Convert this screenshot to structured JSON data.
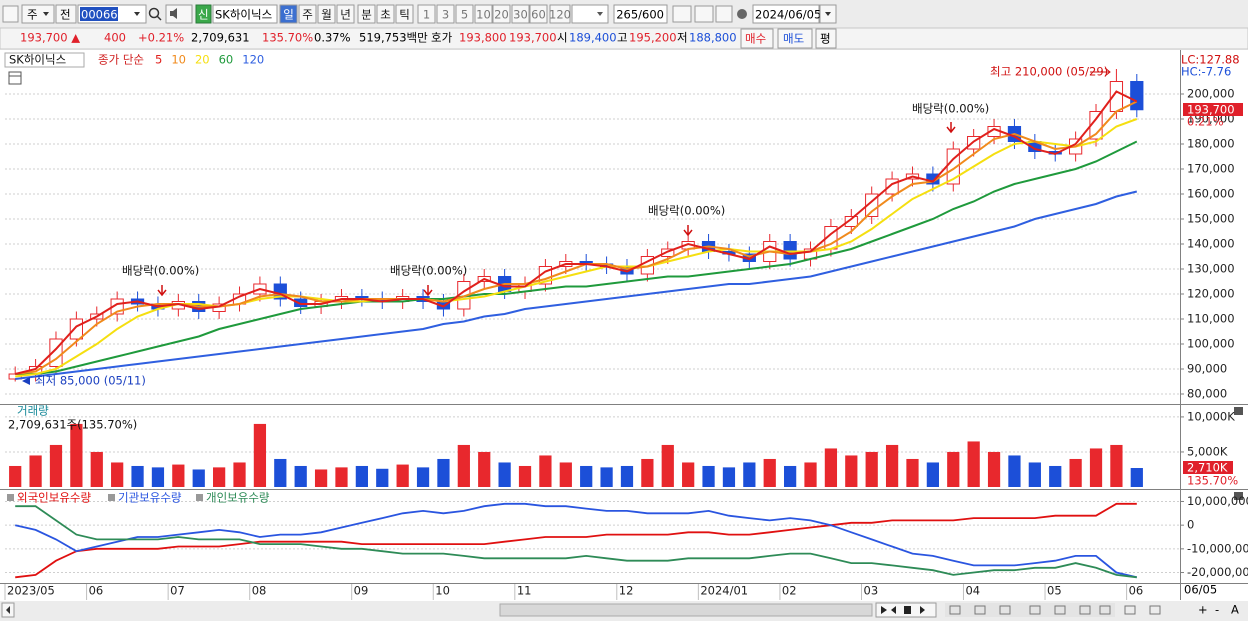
{
  "toolbar": {
    "period_select": "주",
    "prev_btn": "전",
    "code": "000660",
    "new_badge": "신",
    "name": "SK하이닉스",
    "periods": [
      "일",
      "주",
      "월",
      "년",
      "분",
      "초",
      "틱"
    ],
    "intervals": [
      "1",
      "3",
      "5",
      "10",
      "20",
      "30",
      "60",
      "120"
    ],
    "count": "265/600",
    "date": "2024/06/05"
  },
  "quote_bar": {
    "price": "193,700 ▲",
    "change": "400",
    "change_pct": "+0.21%",
    "volume": "2,709,631",
    "volume_ratio": "135.70%",
    "turnover": "0.37%",
    "amount": "519,753백만",
    "bid_ask_label": "호가",
    "ask": "193,800",
    "bid": "193,700",
    "open_label": "시",
    "open": "189,400",
    "high_label": "고",
    "high": "195,200",
    "low_label": "저",
    "low": "188,800",
    "buy": "매수",
    "sell": "매도",
    "balance": "평"
  },
  "chart_data": [
    {
      "type": "candlestick",
      "title": "SK하이닉스",
      "ma_label": "종가 단순",
      "up_color": "#e8282d",
      "down_color": "#1c4fd8",
      "open": [
        86000,
        88000,
        91000,
        102000,
        110000,
        112000,
        118000,
        116000,
        114000,
        117000,
        113000,
        116000,
        120000,
        124000,
        118000,
        115000,
        117000,
        119000,
        118000,
        117000,
        119000,
        117000,
        114000,
        125000,
        127000,
        121000,
        124000,
        131000,
        133000,
        132000,
        131000,
        128000,
        135000,
        138000,
        141000,
        137000,
        136000,
        133000,
        141000,
        134000,
        138000,
        147000,
        151000,
        160000,
        166000,
        168000,
        164000,
        178000,
        183000,
        187000,
        181000,
        177000,
        176000,
        182000,
        193000,
        205000
      ],
      "high": [
        91000,
        94000,
        105000,
        113000,
        115000,
        121000,
        121000,
        119000,
        120000,
        120000,
        119000,
        123000,
        127000,
        127000,
        121000,
        120000,
        122000,
        122000,
        121000,
        122000,
        122000,
        120000,
        128000,
        130000,
        130000,
        127000,
        134000,
        136000,
        136000,
        135000,
        134000,
        138000,
        141000,
        144000,
        144000,
        140000,
        139000,
        144000,
        144000,
        141000,
        150000,
        154000,
        163000,
        169000,
        171000,
        171000,
        181000,
        186000,
        190000,
        190000,
        184000,
        180000,
        185000,
        196000,
        210000,
        208000
      ],
      "low": [
        85000,
        85000,
        88000,
        99000,
        107000,
        109000,
        113000,
        111000,
        111000,
        110000,
        110000,
        113000,
        117000,
        115000,
        112000,
        112000,
        114000,
        115000,
        114000,
        114000,
        114000,
        111000,
        111000,
        122000,
        118000,
        118000,
        121000,
        128000,
        129000,
        128000,
        125000,
        125000,
        132000,
        135000,
        134000,
        133000,
        130000,
        130000,
        131000,
        131000,
        135000,
        144000,
        148000,
        157000,
        163000,
        161000,
        161000,
        175000,
        180000,
        178000,
        174000,
        173000,
        173000,
        179000,
        190000,
        190700
      ],
      "close": [
        88000,
        91000,
        102000,
        110000,
        112000,
        118000,
        116000,
        114000,
        117000,
        113000,
        116000,
        120000,
        124000,
        118000,
        115000,
        117000,
        119000,
        118000,
        117000,
        119000,
        117000,
        114000,
        125000,
        127000,
        121000,
        124000,
        131000,
        133000,
        132000,
        131000,
        128000,
        135000,
        138000,
        141000,
        137000,
        136000,
        133000,
        141000,
        134000,
        138000,
        147000,
        151000,
        160000,
        166000,
        168000,
        164000,
        178000,
        183000,
        187000,
        181000,
        177000,
        176000,
        182000,
        193000,
        205000,
        193700
      ],
      "series": [
        {
          "name": "120",
          "color": "#2f5fe0",
          "values": [
            86000,
            87000,
            88000,
            89000,
            90000,
            91000,
            92000,
            93000,
            94000,
            95000,
            96000,
            97000,
            98000,
            99000,
            100000,
            101000,
            102000,
            103000,
            104000,
            105000,
            106000,
            108000,
            109000,
            111000,
            112000,
            114000,
            115000,
            116000,
            117000,
            118000,
            119000,
            120000,
            121000,
            122000,
            123000,
            124000,
            124000,
            125000,
            126000,
            127000,
            129000,
            131000,
            133000,
            135000,
            137000,
            139000,
            141000,
            143000,
            145000,
            147000,
            150000,
            152000,
            154000,
            156000,
            159000,
            161000
          ]
        },
        {
          "name": "60",
          "color": "#1f9a3c",
          "values": [
            88000,
            88000,
            89000,
            91000,
            93000,
            95000,
            97000,
            99000,
            101000,
            103000,
            106000,
            108000,
            110000,
            112000,
            114000,
            115000,
            116000,
            117000,
            117000,
            117000,
            118000,
            118000,
            119000,
            120000,
            120000,
            121000,
            122000,
            123000,
            123000,
            124000,
            125000,
            126000,
            127000,
            127000,
            128000,
            129000,
            130000,
            131000,
            132000,
            134000,
            136000,
            138000,
            141000,
            144000,
            147000,
            150000,
            154000,
            157000,
            161000,
            164000,
            166000,
            168000,
            170000,
            173000,
            177000,
            181000
          ]
        },
        {
          "name": "20",
          "color": "#f5df10",
          "values": [
            87000,
            88000,
            90000,
            95000,
            100000,
            106000,
            111000,
            114000,
            116000,
            116000,
            115000,
            116000,
            118000,
            119000,
            119000,
            118000,
            117000,
            117000,
            118000,
            118000,
            118000,
            117000,
            118000,
            119000,
            121000,
            123000,
            125000,
            127000,
            129000,
            131000,
            131000,
            131000,
            133000,
            135000,
            137000,
            138000,
            137000,
            137000,
            137000,
            137000,
            138000,
            141000,
            146000,
            152000,
            158000,
            162000,
            166000,
            171000,
            176000,
            180000,
            181000,
            180000,
            179000,
            181000,
            187000,
            190000
          ]
        },
        {
          "name": "10",
          "color": "#f08a1c",
          "values": [
            88000,
            89000,
            94000,
            101000,
            108000,
            113000,
            115000,
            116000,
            116000,
            115000,
            115000,
            116000,
            119000,
            120000,
            119000,
            117000,
            117000,
            118000,
            118000,
            118000,
            118000,
            117000,
            119000,
            122000,
            124000,
            124000,
            126000,
            129000,
            132000,
            132000,
            130000,
            131000,
            134000,
            138000,
            139000,
            138000,
            135000,
            137000,
            136000,
            137000,
            140000,
            145000,
            153000,
            159000,
            164000,
            165000,
            170000,
            176000,
            182000,
            184000,
            181000,
            178000,
            179000,
            184000,
            193000,
            197000
          ]
        },
        {
          "name": "5",
          "color": "#e0201c",
          "values": [
            88000,
            90000,
            98000,
            107000,
            111000,
            116000,
            117000,
            115000,
            116000,
            114000,
            115000,
            119000,
            122000,
            120000,
            116000,
            116000,
            118000,
            118000,
            117000,
            118000,
            118000,
            115000,
            121000,
            126000,
            123000,
            123000,
            129000,
            132000,
            132000,
            131000,
            129000,
            133000,
            137000,
            140000,
            138000,
            136000,
            134000,
            139000,
            136000,
            137000,
            144000,
            150000,
            157000,
            164000,
            167000,
            165000,
            174000,
            181000,
            186000,
            183000,
            178000,
            176000,
            180000,
            190000,
            201000,
            197000
          ]
        }
      ],
      "legend_order": [
        4,
        3,
        2,
        1,
        0
      ],
      "ylim": [
        76000,
        216000
      ],
      "yticks": [
        {
          "value": 80000,
          "label": "80,000"
        },
        {
          "value": 90000,
          "label": "90,000"
        },
        {
          "value": 100000,
          "label": "100,000"
        },
        {
          "value": 110000,
          "label": "110,000"
        },
        {
          "value": 120000,
          "label": "120,000"
        },
        {
          "value": 130000,
          "label": "130,000"
        },
        {
          "value": 140000,
          "label": "140,000"
        },
        {
          "value": 150000,
          "label": "150,000"
        },
        {
          "value": 160000,
          "label": "160,000"
        },
        {
          "value": 170000,
          "label": "170,000"
        },
        {
          "value": 180000,
          "label": "180,000"
        },
        {
          "value": 190000,
          "label": "190,000"
        },
        {
          "value": 200000,
          "label": "200,000"
        }
      ],
      "grid": true,
      "annotations": [
        "최고 210,000 (05/29)",
        "최저 85,000 (05/11)",
        "배당락(0.00%)",
        "배당락(0.00%)",
        "배당락(0.00%)",
        "배당락(0.00%)"
      ],
      "scale_labels": [
        "LC:127.88",
        "HC:-7.76"
      ],
      "last_price_label": "193,700",
      "last_change_label": "0.21%"
    },
    {
      "type": "bar",
      "title": "거래량",
      "info": "2,709,631주(135.70%)",
      "values": [
        3000000,
        4500000,
        6000000,
        9000000,
        5000000,
        3500000,
        3000000,
        2800000,
        3200000,
        2500000,
        2800000,
        3500000,
        9000000,
        4000000,
        3000000,
        2500000,
        2800000,
        3000000,
        2600000,
        3200000,
        2800000,
        4000000,
        6000000,
        5000000,
        3500000,
        3000000,
        4500000,
        3500000,
        3000000,
        2800000,
        3000000,
        4000000,
        6000000,
        3500000,
        3000000,
        2800000,
        3500000,
        4000000,
        3000000,
        3500000,
        5500000,
        4500000,
        5000000,
        6000000,
        4000000,
        3500000,
        5000000,
        6500000,
        5000000,
        4500000,
        3500000,
        3000000,
        4000000,
        5500000,
        6000000,
        2709631
      ],
      "ylim": [
        0,
        11700000
      ],
      "yticks": [
        {
          "value": 5000000,
          "label": "5,000K"
        },
        {
          "value": 10000000,
          "label": "10,000K"
        }
      ],
      "grid": true,
      "last_label": "2,710K",
      "last_pct_label": "135.70%"
    },
    {
      "type": "line",
      "categories": [
        "2023/05",
        null,
        null,
        null,
        "06",
        null,
        null,
        null,
        "07",
        null,
        null,
        null,
        "08",
        null,
        null,
        null,
        null,
        "09",
        null,
        null,
        null,
        "10",
        null,
        null,
        null,
        "11",
        null,
        null,
        null,
        null,
        "12",
        null,
        null,
        null,
        "2024/01",
        null,
        null,
        null,
        "02",
        null,
        null,
        null,
        "03",
        null,
        null,
        null,
        null,
        "04",
        null,
        null,
        null,
        "05",
        null,
        null,
        null,
        "06"
      ],
      "series": [
        {
          "name": "외국인보유수량",
          "color": "#e01010",
          "values": [
            -22000000,
            -21000000,
            -15000000,
            -11000000,
            -10000000,
            -10000000,
            -10000000,
            -10000000,
            -9000000,
            -9000000,
            -9000000,
            -8000000,
            -7000000,
            -7000000,
            -7000000,
            -7000000,
            -7000000,
            -8000000,
            -8000000,
            -8000000,
            -8000000,
            -8000000,
            -8000000,
            -8000000,
            -7000000,
            -6000000,
            -5000000,
            -5000000,
            -5000000,
            -4000000,
            -4000000,
            -4000000,
            -4000000,
            -3000000,
            -3000000,
            -4000000,
            -4000000,
            -3000000,
            -2000000,
            -1000000,
            0,
            1000000,
            1000000,
            2000000,
            2000000,
            2000000,
            2000000,
            3000000,
            3000000,
            3000000,
            3000000,
            4000000,
            4000000,
            4000000,
            9000000,
            9000000
          ]
        },
        {
          "name": "기관보유수량",
          "color": "#2a55e0",
          "values": [
            0,
            -2000000,
            -6000000,
            -11000000,
            -9000000,
            -7000000,
            -5000000,
            -5000000,
            -4000000,
            -3000000,
            -2000000,
            -3000000,
            -5000000,
            -4000000,
            -4000000,
            -3000000,
            -1000000,
            1000000,
            3000000,
            5000000,
            6000000,
            5000000,
            6000000,
            8000000,
            9000000,
            9000000,
            8000000,
            8000000,
            7000000,
            6000000,
            6000000,
            5000000,
            5000000,
            5000000,
            6000000,
            4000000,
            3000000,
            2000000,
            3000000,
            2000000,
            0,
            -3000000,
            -6000000,
            -9000000,
            -12000000,
            -13000000,
            -15000000,
            -17000000,
            -17000000,
            -17000000,
            -16000000,
            -15000000,
            -13000000,
            -13000000,
            -20000000,
            -22000000
          ]
        },
        {
          "name": "개인보유수량",
          "color": "#2e8b57",
          "values": [
            8000000,
            8000000,
            2000000,
            -4000000,
            -6000000,
            -6000000,
            -6000000,
            -6000000,
            -5000000,
            -6000000,
            -6000000,
            -6000000,
            -8000000,
            -8000000,
            -8000000,
            -9000000,
            -10000000,
            -10000000,
            -11000000,
            -12000000,
            -12000000,
            -12000000,
            -13000000,
            -14000000,
            -14000000,
            -14000000,
            -14000000,
            -14000000,
            -13000000,
            -14000000,
            -15000000,
            -15000000,
            -15000000,
            -14000000,
            -14000000,
            -14000000,
            -14000000,
            -13000000,
            -12000000,
            -12000000,
            -14000000,
            -16000000,
            -16000000,
            -17000000,
            -18000000,
            -19000000,
            -21000000,
            -20000000,
            -19000000,
            -19000000,
            -18000000,
            -18000000,
            -16000000,
            -18000000,
            -21000000,
            -22000000
          ]
        }
      ],
      "ylim": [
        -24000000,
        14000000
      ],
      "yticks": [
        {
          "value": 10000000,
          "label": "10,000,000"
        },
        0,
        {
          "value": -10000000,
          "label": "-10,000,000"
        },
        {
          "value": -20000000,
          "label": "-20,000,000"
        }
      ],
      "grid": true
    }
  ],
  "cursor_date": "06/05",
  "bottom_controls": {
    "zoom_in": "+",
    "zoom_out": "-",
    "font": "A"
  }
}
